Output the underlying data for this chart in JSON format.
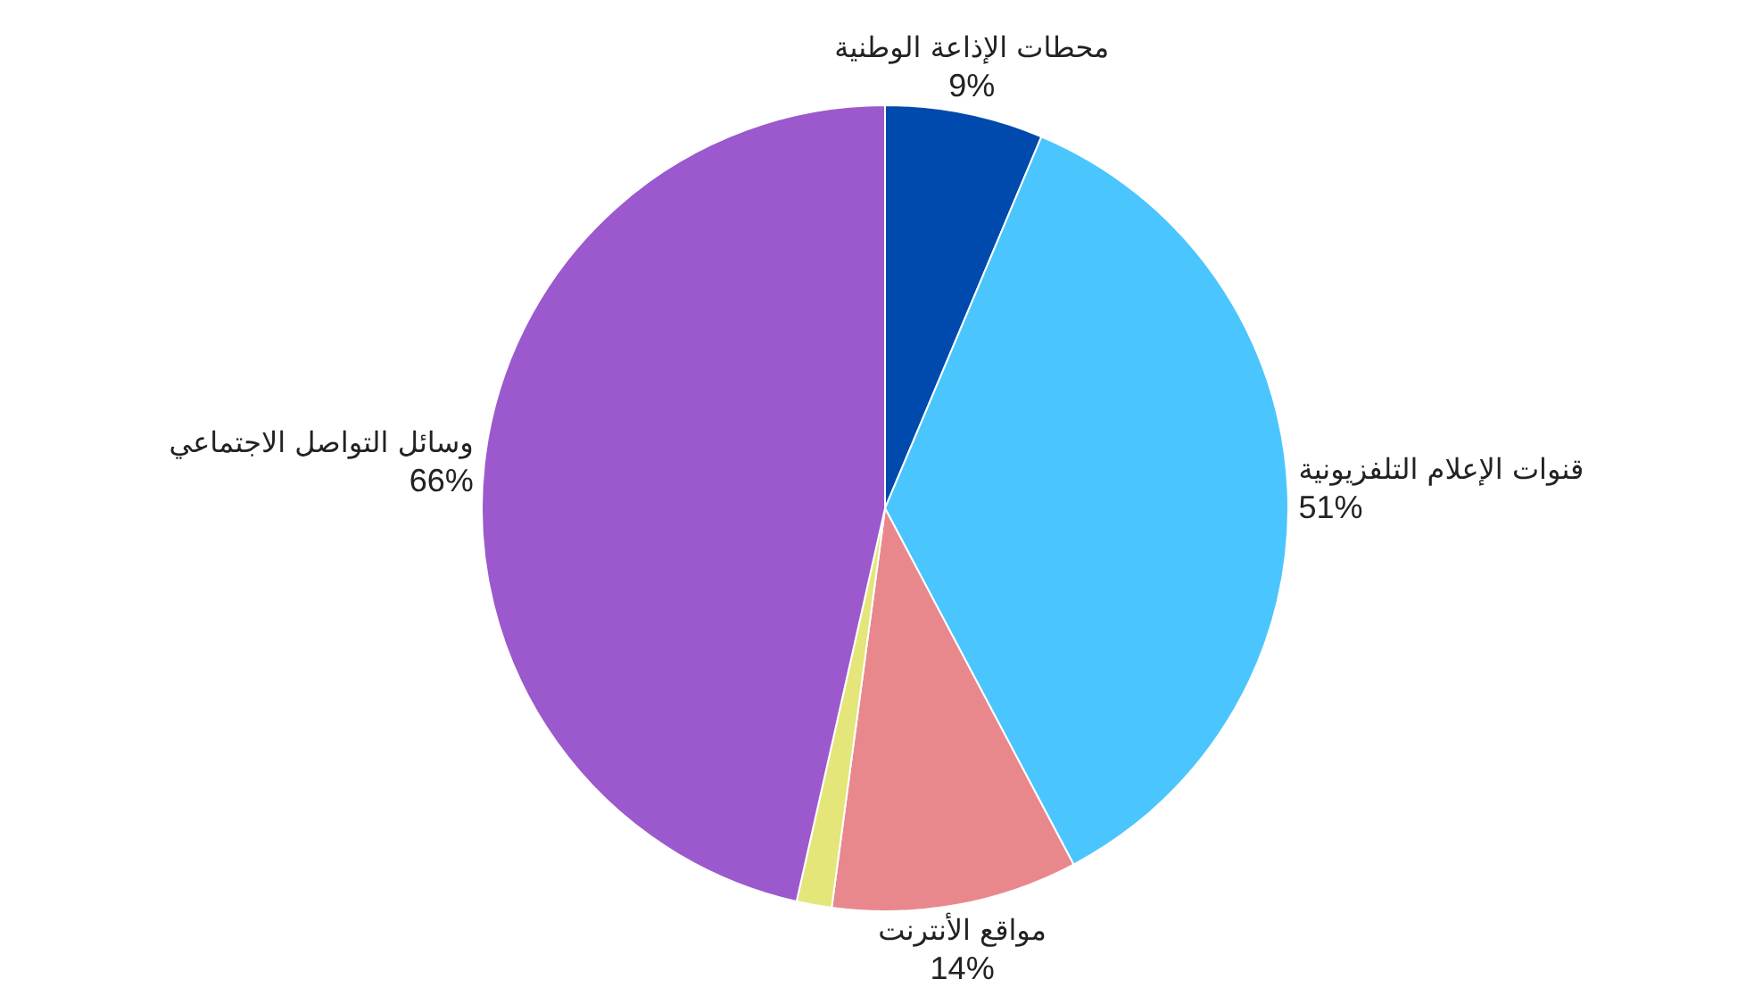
{
  "chart_data": {
    "type": "pie",
    "categories": [
      "محطات الإذاعة الوطنية",
      "قنوات الإعلام التلفزيونية",
      "مواقع الأنترنت",
      null,
      "وسائل التواصل الاجتماعي"
    ],
    "values": [
      9,
      51,
      14,
      2,
      66
    ],
    "colors": [
      "#004aad",
      "#4bc5fd",
      "#e8888d",
      "#e4e67a",
      "#9b59cd"
    ],
    "value_labels": [
      "9%",
      "51%",
      "14%",
      null,
      "66%"
    ]
  }
}
